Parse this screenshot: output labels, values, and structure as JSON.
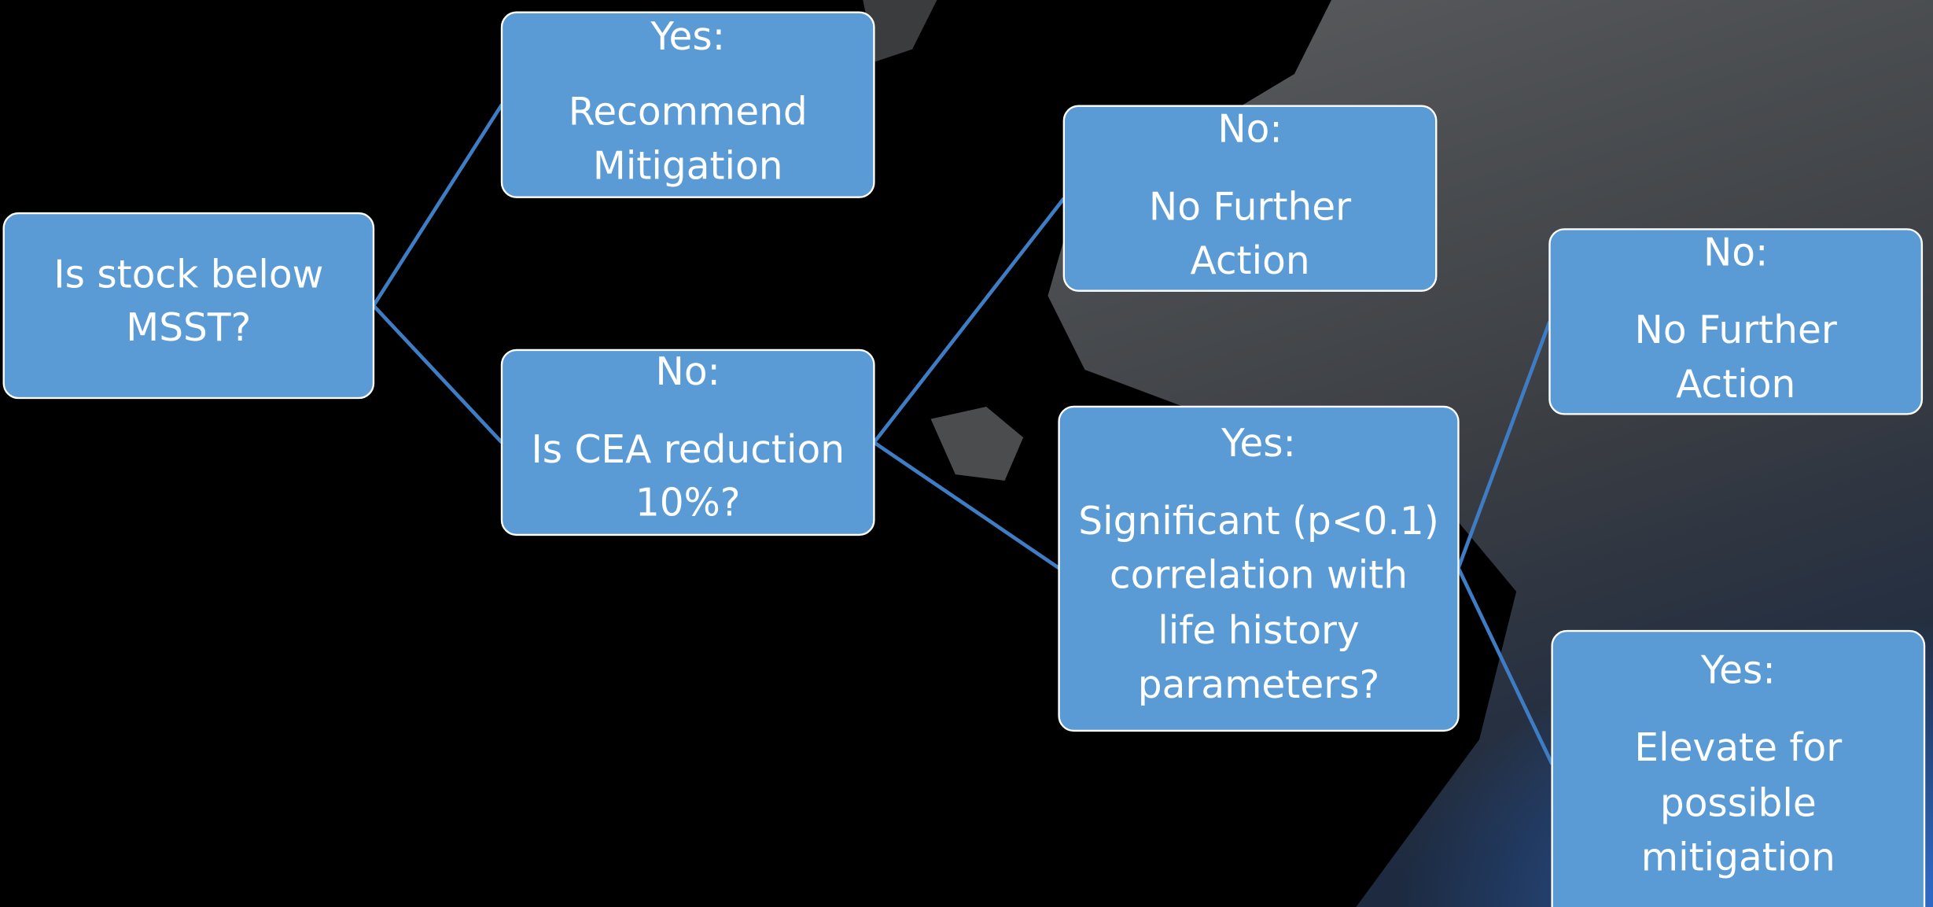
{
  "nodes": [
    {
      "lines": [
        "Is stock below",
        "MSST?"
      ]
    },
    {
      "head": "Yes:",
      "lines": [
        "Recommend",
        "Mitigation"
      ]
    },
    {
      "head": "No:",
      "lines": [
        "Is CEA reduction",
        "10%?"
      ]
    },
    {
      "head": "No:",
      "lines": [
        "No Further",
        "Action"
      ]
    },
    {
      "head": "Yes:",
      "lines": [
        "Significant (p<0.1)",
        "correlation with",
        "life history",
        "parameters?"
      ]
    },
    {
      "head": "No:",
      "lines": [
        "No Further",
        "Action"
      ]
    },
    {
      "head": "Yes:",
      "lines": [
        "Elevate for",
        "possible",
        "mitigation"
      ]
    }
  ]
}
